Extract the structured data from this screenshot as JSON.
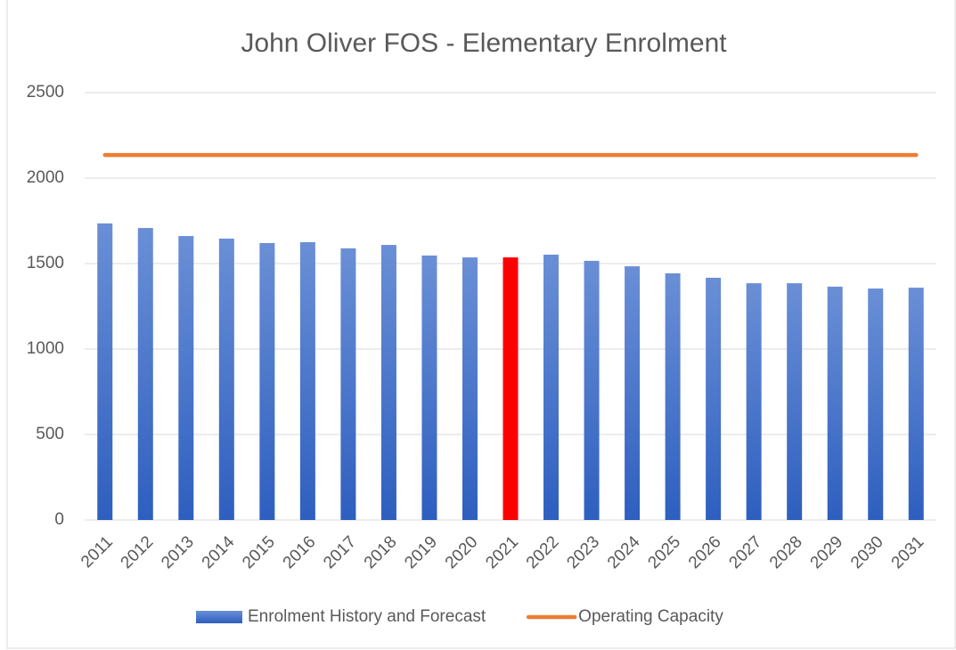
{
  "chart_data": {
    "type": "bar",
    "title": "John Oliver FOS - Elementary Enrolment",
    "categories": [
      "2011",
      "2012",
      "2013",
      "2014",
      "2015",
      "2016",
      "2017",
      "2018",
      "2019",
      "2020",
      "2021",
      "2022",
      "2023",
      "2024",
      "2025",
      "2026",
      "2027",
      "2028",
      "2029",
      "2030",
      "2031"
    ],
    "series": [
      {
        "name": "Enrolment History and Forecast",
        "type": "bar",
        "color": "#4472c4",
        "point_colors": [
          "#4472c4",
          "#4472c4",
          "#4472c4",
          "#4472c4",
          "#4472c4",
          "#4472c4",
          "#4472c4",
          "#4472c4",
          "#4472c4",
          "#4472c4",
          "#ff0000",
          "#4472c4",
          "#4472c4",
          "#4472c4",
          "#4472c4",
          "#4472c4",
          "#4472c4",
          "#4472c4",
          "#4472c4",
          "#4472c4",
          "#4472c4"
        ],
        "values": [
          1735,
          1708,
          1661,
          1646,
          1620,
          1625,
          1589,
          1609,
          1547,
          1536,
          1536,
          1552,
          1516,
          1484,
          1443,
          1417,
          1385,
          1385,
          1365,
          1354,
          1359
        ]
      },
      {
        "name": "Operating Capacity",
        "type": "line",
        "color": "#ed7d31",
        "values": [
          2135,
          2135,
          2135,
          2135,
          2135,
          2135,
          2135,
          2135,
          2135,
          2135,
          2135,
          2135,
          2135,
          2135,
          2135,
          2135,
          2135,
          2135,
          2135,
          2135,
          2135
        ]
      }
    ],
    "ylim": [
      0,
      2500
    ],
    "yticks": [
      0,
      500,
      1000,
      1500,
      2000,
      2500
    ],
    "grid": true,
    "legend": "bottom"
  }
}
